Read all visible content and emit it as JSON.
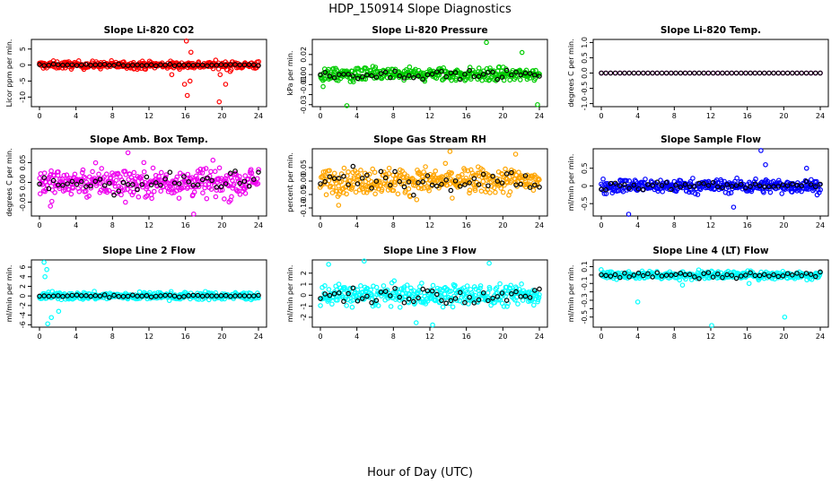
{
  "title": "HDP_150914  Slope Diagnostics",
  "xlabel": "Hour of Day (UTC)",
  "chart_data": [
    {
      "type": "scatter",
      "title": "Slope Li-820 CO2",
      "ylabel": "Licor ppm per min.",
      "color": "#ff0000",
      "ylim": [
        -13,
        8
      ],
      "yticks": [
        -10,
        -5,
        0,
        5
      ],
      "ytick_labels": [
        "-10",
        "-5",
        "0",
        "5"
      ],
      "spread": 1.2,
      "outliers": [
        [
          16.1,
          7.5
        ],
        [
          16.5,
          -5
        ],
        [
          15.9,
          -6
        ],
        [
          19.7,
          -11.5
        ],
        [
          16.2,
          -9.5
        ],
        [
          20.4,
          -6
        ],
        [
          19.8,
          -3
        ],
        [
          16.6,
          4
        ],
        [
          14.5,
          -3
        ],
        [
          20.9,
          -2
        ]
      ],
      "black_spread": 0.3,
      "x": [
        0,
        24
      ],
      "xticks": [
        0,
        4,
        8,
        12,
        16,
        20,
        24
      ]
    },
    {
      "type": "scatter",
      "title": "Slope Li-820 Pressure",
      "ylabel": "kPa per min.",
      "color": "#00cc00",
      "ylim": [
        -0.032,
        0.035
      ],
      "yticks": [
        -0.03,
        -0.02,
        -0.01,
        0.0,
        0.01,
        0.02
      ],
      "ytick_labels": [
        "-0.03",
        "",
        "-0.01",
        "0.00",
        "",
        "0.02"
      ],
      "spread": 0.007,
      "outliers": [
        [
          0.3,
          -0.012
        ],
        [
          18.2,
          0.032
        ],
        [
          23.8,
          -0.03
        ],
        [
          2.9,
          -0.031
        ],
        [
          22.1,
          0.022
        ]
      ],
      "black_spread": 0.004,
      "x": [
        0,
        24
      ],
      "xticks": [
        0,
        4,
        8,
        12,
        16,
        20,
        24
      ]
    },
    {
      "type": "scatter",
      "title": "Slope Li-820 Temp.",
      "ylabel": "degrees C per min.",
      "color": "#ff00ff",
      "ylim": [
        -1.1,
        1.1
      ],
      "yticks": [
        -1.0,
        -0.5,
        0.0,
        0.5,
        1.0
      ],
      "ytick_labels": [
        "-1.0",
        "-0.5",
        "0.0",
        "0.5",
        "1.0"
      ],
      "spread": 0.0,
      "outliers": [],
      "black_spread": 0.0,
      "x": [
        0,
        24
      ],
      "xticks": [
        0,
        4,
        8,
        12,
        16,
        20,
        24
      ]
    },
    {
      "type": "scatter",
      "title": "Slope Amb. Box Temp.",
      "ylabel": "degrees C per min.",
      "color": "#ee00ee",
      "ylim": [
        -0.085,
        0.085
      ],
      "yticks": [
        -0.05,
        0.0,
        0.05
      ],
      "ytick_labels": [
        "-0.05",
        "0.00",
        "0.05"
      ],
      "spread": 0.04,
      "outliers": [
        [
          16.9,
          -0.08
        ],
        [
          1.2,
          -0.06
        ],
        [
          9.7,
          0.075
        ]
      ],
      "black_spread": 0.03,
      "x": [
        0,
        24
      ],
      "xticks": [
        0,
        4,
        8,
        12,
        16,
        20,
        24
      ]
    },
    {
      "type": "scatter",
      "title": "Slope Gas Stream RH",
      "ylabel": "percent per min.",
      "color": "#ffa500",
      "ylim": [
        -0.13,
        0.12
      ],
      "yticks": [
        -0.1,
        -0.05,
        0.0,
        0.05
      ],
      "ytick_labels": [
        "-0.10",
        "-0.05",
        "0.00",
        "0.05"
      ],
      "spread": 0.05,
      "outliers": [
        [
          14.2,
          0.11
        ],
        [
          2.0,
          -0.09
        ],
        [
          21.4,
          0.1
        ]
      ],
      "black_spread": 0.04,
      "x": [
        0,
        24
      ],
      "xticks": [
        0,
        4,
        8,
        12,
        16,
        20,
        24
      ]
    },
    {
      "type": "scatter",
      "title": "Slope Sample Flow",
      "ylabel": "ml/min per min.",
      "color": "#0000ff",
      "ylim": [
        -0.85,
        1.05
      ],
      "yticks": [
        -0.5,
        0.0,
        0.5
      ],
      "ytick_labels": [
        "-0.5",
        "0",
        "0.5"
      ],
      "spread": 0.2,
      "outliers": [
        [
          17.5,
          1.0
        ],
        [
          3.0,
          -0.8
        ],
        [
          14.5,
          -0.6
        ],
        [
          22.5,
          0.5
        ],
        [
          18.0,
          0.6
        ]
      ],
      "black_spread": 0.12,
      "x": [
        0,
        24
      ],
      "xticks": [
        0,
        4,
        8,
        12,
        16,
        20,
        24
      ]
    },
    {
      "type": "scatter",
      "title": "Slope Line 2 Flow",
      "ylabel": "ml/min per min.",
      "color": "#00ffff",
      "ylim": [
        -6.5,
        7.5
      ],
      "yticks": [
        -6,
        -4,
        -2,
        0,
        2,
        4,
        6
      ],
      "ytick_labels": [
        "-6",
        "-4",
        "-2",
        "0",
        "2",
        "4",
        "6"
      ],
      "spread": 0.8,
      "outliers": [
        [
          0.5,
          7.0
        ],
        [
          0.9,
          -5.8
        ],
        [
          0.6,
          4.0
        ],
        [
          1.3,
          -4.5
        ],
        [
          2.1,
          -3.2
        ],
        [
          0.8,
          5.5
        ]
      ],
      "black_spread": 0.2,
      "x": [
        0,
        24
      ],
      "xticks": [
        0,
        4,
        8,
        12,
        16,
        20,
        24
      ]
    },
    {
      "type": "scatter",
      "title": "Slope Line 3 Flow",
      "ylabel": "ml/min per min.",
      "color": "#00ffff",
      "ylim": [
        -2.9,
        3.2
      ],
      "yticks": [
        -2,
        -1,
        0,
        1,
        2
      ],
      "ytick_labels": [
        "-2",
        "-1",
        "0",
        "1",
        "2"
      ],
      "spread": 1.0,
      "outliers": [
        [
          0.9,
          2.8
        ],
        [
          4.8,
          3.1
        ],
        [
          12.3,
          -2.7
        ],
        [
          10.5,
          -2.5
        ],
        [
          18.5,
          2.9
        ]
      ],
      "black_spread": 0.8,
      "x": [
        0,
        24
      ],
      "xticks": [
        0,
        4,
        8,
        12,
        16,
        20,
        24
      ]
    },
    {
      "type": "scatter",
      "title": "Slope Line 4 (LT) Flow",
      "ylabel": "ml/min per min.",
      "color": "#00ffff",
      "ylim": [
        -0.62,
        0.18
      ],
      "yticks": [
        -0.5,
        -0.4,
        -0.3,
        -0.2,
        -0.1,
        0.0,
        0.1
      ],
      "ytick_labels": [
        "-0.5",
        "",
        "-0.3",
        "",
        "-0.1",
        "",
        "0.1"
      ],
      "spread": 0.05,
      "outliers": [
        [
          12.1,
          -0.6
        ],
        [
          20.1,
          -0.5
        ],
        [
          4.0,
          -0.32
        ],
        [
          8.9,
          -0.12
        ],
        [
          16.2,
          -0.1
        ]
      ],
      "black_spread": 0.04,
      "x": [
        0,
        24
      ],
      "xticks": [
        0,
        4,
        8,
        12,
        16,
        20,
        24
      ]
    }
  ]
}
